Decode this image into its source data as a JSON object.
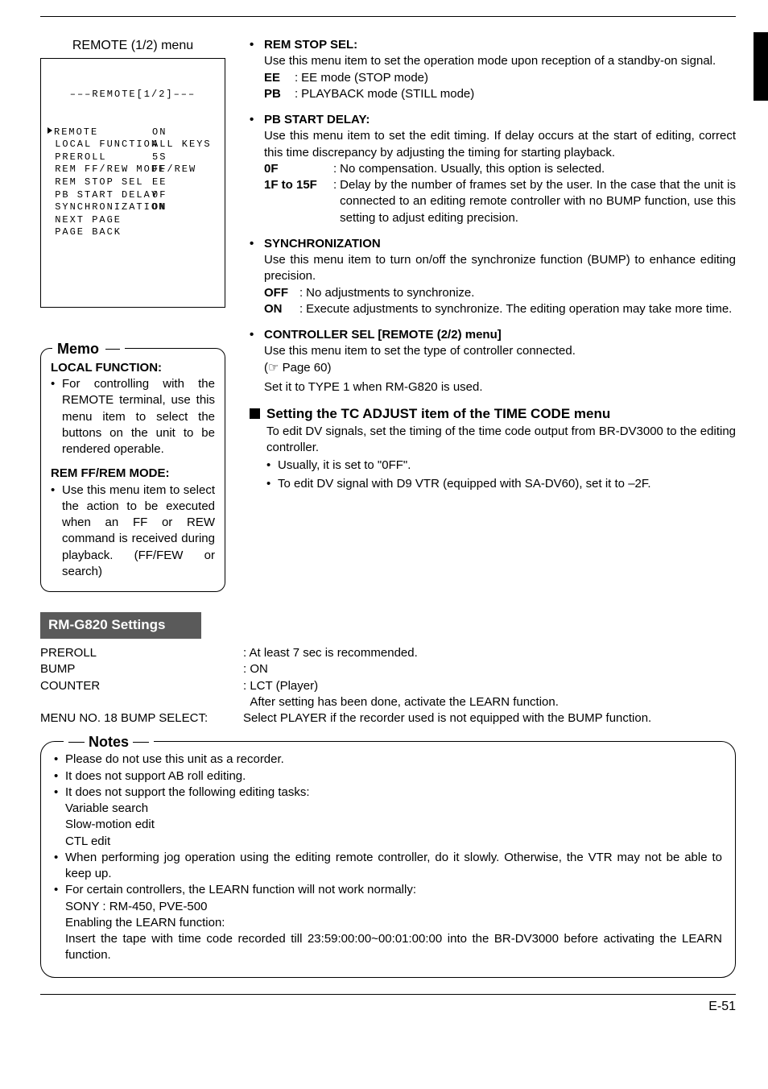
{
  "page_number": "E-51",
  "black_tab": true,
  "remote_frame": {
    "label": "REMOTE (1/2) menu",
    "title": "–––REMOTE[1/2]–––",
    "rows": [
      {
        "k": "REMOTE",
        "v": "ON",
        "pointer": true
      },
      {
        "k": "LOCAL FUNCTION",
        "v": "ALL KEYS"
      },
      {
        "k": "PREROLL",
        "v": "5S"
      },
      {
        "k": "REM FF/REW MODE",
        "v": "FF/REW"
      },
      {
        "k": "REM STOP SEL",
        "v": "EE"
      },
      {
        "k": "PB START DELAY",
        "v": "0F"
      },
      {
        "k": "SYNCHRONIZATION",
        "v": "ON"
      },
      {
        "k": "NEXT PAGE",
        "v": ""
      },
      {
        "k": "PAGE BACK",
        "v": ""
      }
    ]
  },
  "memo": {
    "title": "Memo",
    "sections": [
      {
        "heading": "LOCAL FUNCTION:",
        "text": "For controlling with the REMOTE terminal, use this menu item to select the buttons on the unit to be rendered operable."
      },
      {
        "heading": "REM FF/REM MODE:",
        "text": "Use this menu item to select the action to be executed when an FF or REW command is received during playback. (FF/FEW or search)"
      }
    ]
  },
  "right_items": [
    {
      "label": "REM STOP SEL:",
      "body": "Use this menu item to set the operation mode upon reception of a standby-on signal.",
      "defs": [
        {
          "k": "EE",
          "kw": "34px",
          "v": "EE mode (STOP mode)"
        },
        {
          "k": "PB",
          "kw": "34px",
          "v": "PLAYBACK mode (STILL mode)"
        }
      ]
    },
    {
      "label": "PB START DELAY:",
      "body": "Use this menu item to set the edit timing. If delay occurs at the start of editing, correct this time discrepancy by adjusting the timing for starting playback.",
      "defs": [
        {
          "k": "0F",
          "kw": "82px",
          "v": "No compensation. Usually, this option is selected."
        },
        {
          "k": "1F to 15F",
          "kw": "82px",
          "v": "Delay by the number of frames set by the user. In the case that the unit is connected to an editing remote controller with no BUMP function, use this setting to adjust editing precision."
        }
      ]
    },
    {
      "label": "SYNCHRONIZATION",
      "body": "Use this menu item to turn on/off the synchronize function (BUMP) to enhance editing precision.",
      "defs": [
        {
          "k": "OFF",
          "kw": "40px",
          "v": "No adjustments to synchronize."
        },
        {
          "k": "ON",
          "kw": "40px",
          "v": "Execute adjustments to synchronize. The editing operation may take more time."
        }
      ]
    },
    {
      "label": "CONTROLLER SEL [REMOTE (2/2) menu]",
      "body": "Use this menu item to set the type of controller connected.",
      "extra1": "(☞ Page 60)",
      "extra2": "Set it to TYPE 1 when RM-G820 is used."
    }
  ],
  "square_section": {
    "title": "Setting the TC ADJUST item of the TIME CODE menu",
    "body": "To edit DV signals, set the timing of the time code output from BR-DV3000 to the editing controller.",
    "subs": [
      "Usually, it is set to \"0FF\".",
      "To edit DV signal with D9 VTR (equipped with SA-DV60), set it to –2F."
    ]
  },
  "rm_settings": {
    "title": "RM-G820 Settings",
    "rows": [
      {
        "k": "PREROLL",
        "v": ": At least 7 sec is recommended."
      },
      {
        "k": "BUMP",
        "v": ": ON"
      },
      {
        "k": "COUNTER",
        "v": ": LCT (Player)"
      },
      {
        "k": "",
        "v": "  After setting has been done, activate the LEARN function."
      },
      {
        "k": "MENU NO. 18 BUMP SELECT:",
        "v": "Select PLAYER if the recorder used is not equipped with the BUMP function."
      }
    ]
  },
  "notes": {
    "title": "Notes",
    "items": [
      {
        "text": "Please do not use this unit as a recorder."
      },
      {
        "text": "It does not support AB roll editing."
      },
      {
        "text": "It does not support the following editing tasks:",
        "subs": [
          "Variable search",
          "Slow-motion edit",
          "CTL edit"
        ]
      },
      {
        "text": "When performing jog operation using the editing remote controller, do it slowly. Otherwise, the VTR may not be able to keep up."
      },
      {
        "text": "For certain controllers, the LEARN function will not work normally:",
        "subs": [
          "SONY : RM-450, PVE-500",
          "Enabling the LEARN function:",
          "Insert the tape with time code recorded till 23:59:00:00~00:01:00:00 into the BR-DV3000 before activating the LEARN function."
        ]
      }
    ]
  }
}
